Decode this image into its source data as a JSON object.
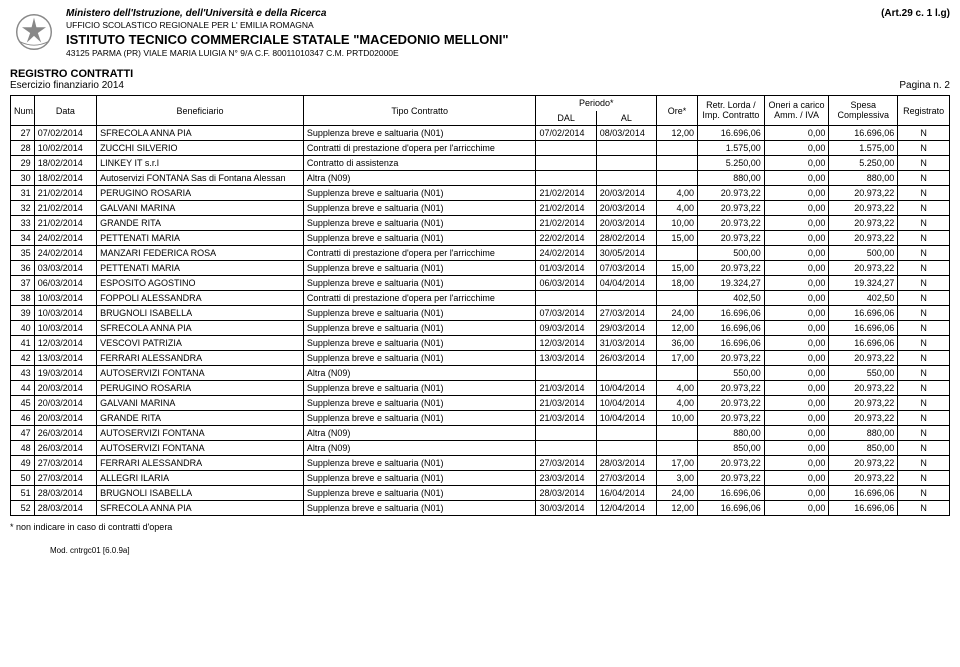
{
  "header": {
    "ministry": "Ministero dell'Istruzione, dell'Università e della Ricerca",
    "ufficio": "UFFICIO SCOLASTICO REGIONALE PER L' EMILIA ROMAGNA",
    "istituto": "ISTITUTO TECNICO COMMERCIALE STATALE \"MACEDONIO MELLONI\"",
    "addr": "43125 PARMA (PR) VIALE MARIA LUIGIA N° 9/A C.F. 80011010347 C.M. PRTD02000E",
    "art": "(Art.29 c. 1 l.g)"
  },
  "section": {
    "title": "REGISTRO CONTRATTI",
    "esercizio": "Esercizio finanziario 2014",
    "pagina": "Pagina n. 2"
  },
  "columns": {
    "num": "Num.",
    "data": "Data",
    "benef": "Beneficiario",
    "tipo": "Tipo Contratto",
    "periodo": "Periodo*",
    "dal": "DAL",
    "al": "AL",
    "ore": "Ore*",
    "retr": "Retr. Lorda / Imp. Contratto",
    "oneri": "Oneri a carico Amm. / IVA",
    "spesa": "Spesa Complessiva",
    "reg": "Registrato"
  },
  "rows": [
    {
      "n": "27",
      "d": "07/02/2014",
      "b": "SFRECOLA ANNA PIA",
      "t": "Supplenza breve e saltuaria (N01)",
      "da": "07/02/2014",
      "al": "08/03/2014",
      "o": "12,00",
      "r": "16.696,06",
      "on": "0,00",
      "s": "16.696,06",
      "rg": "N"
    },
    {
      "n": "28",
      "d": "10/02/2014",
      "b": "ZUCCHI SILVERIO",
      "t": "Contratti di prestazione d'opera per l'arricchime",
      "da": "",
      "al": "",
      "o": "",
      "r": "1.575,00",
      "on": "0,00",
      "s": "1.575,00",
      "rg": "N"
    },
    {
      "n": "29",
      "d": "18/02/2014",
      "b": "LINKEY IT s.r.l",
      "t": "Contratto di assistenza",
      "da": "",
      "al": "",
      "o": "",
      "r": "5.250,00",
      "on": "0,00",
      "s": "5.250,00",
      "rg": "N"
    },
    {
      "n": "30",
      "d": "18/02/2014",
      "b": "Autoservizi FONTANA Sas di Fontana Alessan",
      "t": "Altra (N09)",
      "da": "",
      "al": "",
      "o": "",
      "r": "880,00",
      "on": "0,00",
      "s": "880,00",
      "rg": "N"
    },
    {
      "n": "31",
      "d": "21/02/2014",
      "b": "PERUGINO ROSARIA",
      "t": "Supplenza breve e saltuaria (N01)",
      "da": "21/02/2014",
      "al": "20/03/2014",
      "o": "4,00",
      "r": "20.973,22",
      "on": "0,00",
      "s": "20.973,22",
      "rg": "N"
    },
    {
      "n": "32",
      "d": "21/02/2014",
      "b": "GALVANI MARINA",
      "t": "Supplenza breve e saltuaria (N01)",
      "da": "21/02/2014",
      "al": "20/03/2014",
      "o": "4,00",
      "r": "20.973,22",
      "on": "0,00",
      "s": "20.973,22",
      "rg": "N"
    },
    {
      "n": "33",
      "d": "21/02/2014",
      "b": "GRANDE RITA",
      "t": "Supplenza breve e saltuaria (N01)",
      "da": "21/02/2014",
      "al": "20/03/2014",
      "o": "10,00",
      "r": "20.973,22",
      "on": "0,00",
      "s": "20.973,22",
      "rg": "N"
    },
    {
      "n": "34",
      "d": "24/02/2014",
      "b": "PETTENATI MARIA",
      "t": "Supplenza breve e saltuaria (N01)",
      "da": "22/02/2014",
      "al": "28/02/2014",
      "o": "15,00",
      "r": "20.973,22",
      "on": "0,00",
      "s": "20.973,22",
      "rg": "N"
    },
    {
      "n": "35",
      "d": "24/02/2014",
      "b": "MANZARI FEDERICA ROSA",
      "t": "Contratti di prestazione d'opera per l'arricchime",
      "da": "24/02/2014",
      "al": "30/05/2014",
      "o": "",
      "r": "500,00",
      "on": "0,00",
      "s": "500,00",
      "rg": "N"
    },
    {
      "n": "36",
      "d": "03/03/2014",
      "b": "PETTENATI MARIA",
      "t": "Supplenza breve e saltuaria (N01)",
      "da": "01/03/2014",
      "al": "07/03/2014",
      "o": "15,00",
      "r": "20.973,22",
      "on": "0,00",
      "s": "20.973,22",
      "rg": "N"
    },
    {
      "n": "37",
      "d": "06/03/2014",
      "b": "ESPOSITO AGOSTINO",
      "t": "Supplenza breve e saltuaria (N01)",
      "da": "06/03/2014",
      "al": "04/04/2014",
      "o": "18,00",
      "r": "19.324,27",
      "on": "0,00",
      "s": "19.324,27",
      "rg": "N"
    },
    {
      "n": "38",
      "d": "10/03/2014",
      "b": "FOPPOLI ALESSANDRA",
      "t": "Contratti di prestazione d'opera per l'arricchime",
      "da": "",
      "al": "",
      "o": "",
      "r": "402,50",
      "on": "0,00",
      "s": "402,50",
      "rg": "N"
    },
    {
      "n": "39",
      "d": "10/03/2014",
      "b": "BRUGNOLI ISABELLA",
      "t": "Supplenza breve e saltuaria (N01)",
      "da": "07/03/2014",
      "al": "27/03/2014",
      "o": "24,00",
      "r": "16.696,06",
      "on": "0,00",
      "s": "16.696,06",
      "rg": "N"
    },
    {
      "n": "40",
      "d": "10/03/2014",
      "b": "SFRECOLA ANNA PIA",
      "t": "Supplenza breve e saltuaria (N01)",
      "da": "09/03/2014",
      "al": "29/03/2014",
      "o": "12,00",
      "r": "16.696,06",
      "on": "0,00",
      "s": "16.696,06",
      "rg": "N"
    },
    {
      "n": "41",
      "d": "12/03/2014",
      "b": "VESCOVI PATRIZIA",
      "t": "Supplenza breve e saltuaria (N01)",
      "da": "12/03/2014",
      "al": "31/03/2014",
      "o": "36,00",
      "r": "16.696,06",
      "on": "0,00",
      "s": "16.696,06",
      "rg": "N"
    },
    {
      "n": "42",
      "d": "13/03/2014",
      "b": "FERRARI ALESSANDRA",
      "t": "Supplenza breve e saltuaria (N01)",
      "da": "13/03/2014",
      "al": "26/03/2014",
      "o": "17,00",
      "r": "20.973,22",
      "on": "0,00",
      "s": "20.973,22",
      "rg": "N"
    },
    {
      "n": "43",
      "d": "19/03/2014",
      "b": "AUTOSERVIZI FONTANA",
      "t": "Altra (N09)",
      "da": "",
      "al": "",
      "o": "",
      "r": "550,00",
      "on": "0,00",
      "s": "550,00",
      "rg": "N"
    },
    {
      "n": "44",
      "d": "20/03/2014",
      "b": "PERUGINO ROSARIA",
      "t": "Supplenza breve e saltuaria (N01)",
      "da": "21/03/2014",
      "al": "10/04/2014",
      "o": "4,00",
      "r": "20.973,22",
      "on": "0,00",
      "s": "20.973,22",
      "rg": "N"
    },
    {
      "n": "45",
      "d": "20/03/2014",
      "b": "GALVANI MARINA",
      "t": "Supplenza breve e saltuaria (N01)",
      "da": "21/03/2014",
      "al": "10/04/2014",
      "o": "4,00",
      "r": "20.973,22",
      "on": "0,00",
      "s": "20.973,22",
      "rg": "N"
    },
    {
      "n": "46",
      "d": "20/03/2014",
      "b": "GRANDE RITA",
      "t": "Supplenza breve e saltuaria (N01)",
      "da": "21/03/2014",
      "al": "10/04/2014",
      "o": "10,00",
      "r": "20.973,22",
      "on": "0,00",
      "s": "20.973,22",
      "rg": "N"
    },
    {
      "n": "47",
      "d": "26/03/2014",
      "b": "AUTOSERVIZI FONTANA",
      "t": "Altra (N09)",
      "da": "",
      "al": "",
      "o": "",
      "r": "880,00",
      "on": "0,00",
      "s": "880,00",
      "rg": "N"
    },
    {
      "n": "48",
      "d": "26/03/2014",
      "b": "AUTOSERVIZI FONTANA",
      "t": "Altra (N09)",
      "da": "",
      "al": "",
      "o": "",
      "r": "850,00",
      "on": "0,00",
      "s": "850,00",
      "rg": "N"
    },
    {
      "n": "49",
      "d": "27/03/2014",
      "b": "FERRARI ALESSANDRA",
      "t": "Supplenza breve e saltuaria (N01)",
      "da": "27/03/2014",
      "al": "28/03/2014",
      "o": "17,00",
      "r": "20.973,22",
      "on": "0,00",
      "s": "20.973,22",
      "rg": "N"
    },
    {
      "n": "50",
      "d": "27/03/2014",
      "b": "ALLEGRI ILARIA",
      "t": "Supplenza breve e saltuaria (N01)",
      "da": "23/03/2014",
      "al": "27/03/2014",
      "o": "3,00",
      "r": "20.973,22",
      "on": "0,00",
      "s": "20.973,22",
      "rg": "N"
    },
    {
      "n": "51",
      "d": "28/03/2014",
      "b": "BRUGNOLI ISABELLA",
      "t": "Supplenza breve e saltuaria (N01)",
      "da": "28/03/2014",
      "al": "16/04/2014",
      "o": "24,00",
      "r": "16.696,06",
      "on": "0,00",
      "s": "16.696,06",
      "rg": "N"
    },
    {
      "n": "52",
      "d": "28/03/2014",
      "b": "SFRECOLA ANNA PIA",
      "t": "Supplenza breve e saltuaria (N01)",
      "da": "30/03/2014",
      "al": "12/04/2014",
      "o": "12,00",
      "r": "16.696,06",
      "on": "0,00",
      "s": "16.696,06",
      "rg": "N"
    }
  ],
  "footnote": "* non indicare in caso di contratti d'opera",
  "mod": "Mod. cntrgc01 [6.0.9a]"
}
